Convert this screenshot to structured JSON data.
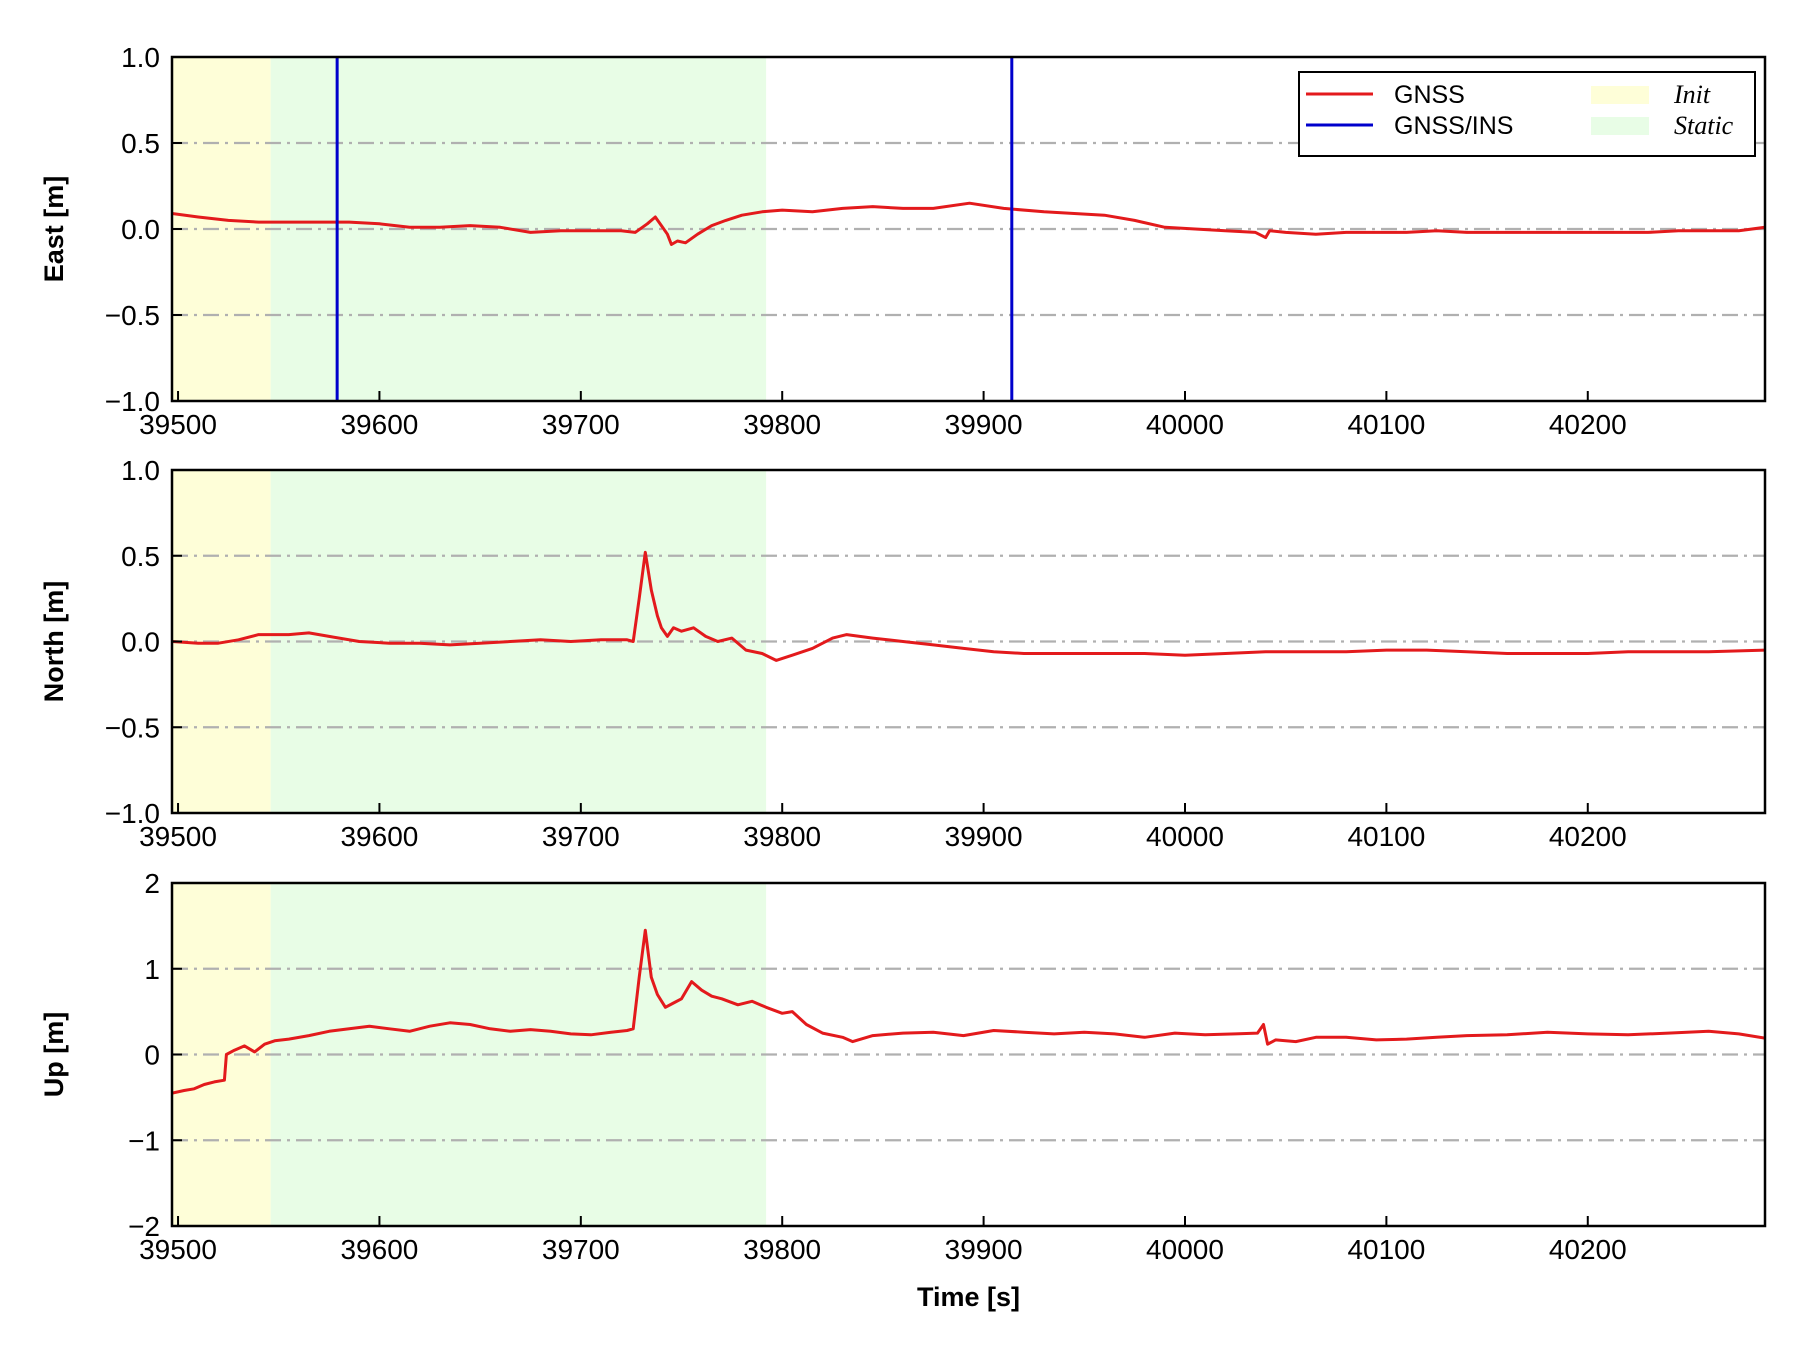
{
  "chart_data": [
    {
      "type": "line",
      "ylabel": "East [m]",
      "xlabel": "",
      "xlim": [
        39497,
        40288
      ],
      "ylim": [
        -1.0,
        1.0
      ],
      "xticks": [
        39500,
        39600,
        39700,
        39800,
        39900,
        40000,
        40100,
        40200
      ],
      "xtick_labels": [
        "39500",
        "39600",
        "39700",
        "39800",
        "39900",
        "40000",
        "40100",
        "40200"
      ],
      "yticks": [
        -1.0,
        -0.5,
        0.0,
        0.5,
        1.0
      ],
      "ytick_labels": [
        "−1.0",
        "−0.5",
        "0.0",
        "0.5",
        "1.0"
      ],
      "gridlines_y": [
        -0.5,
        0.0,
        0.5
      ],
      "shaded_regions": [
        {
          "name": "Init",
          "x0": 39497,
          "x1": 39546,
          "color": "#fefed8"
        },
        {
          "name": "Static",
          "x0": 39546,
          "x1": 39792,
          "color": "#e8fde6"
        }
      ],
      "vlines": [
        {
          "series": "GNSS/INS",
          "x": 39579,
          "color": "#0000cc"
        },
        {
          "series": "GNSS/INS",
          "x": 39914,
          "color": "#0000cc"
        }
      ],
      "series": [
        {
          "name": "GNSS",
          "color": "#e31a1c",
          "points": [
            [
              39497,
              0.09
            ],
            [
              39510,
              0.07
            ],
            [
              39525,
              0.05
            ],
            [
              39540,
              0.04
            ],
            [
              39555,
              0.04
            ],
            [
              39570,
              0.04
            ],
            [
              39585,
              0.04
            ],
            [
              39600,
              0.03
            ],
            [
              39615,
              0.01
            ],
            [
              39630,
              0.01
            ],
            [
              39645,
              0.02
            ],
            [
              39660,
              0.01
            ],
            [
              39675,
              -0.02
            ],
            [
              39690,
              -0.01
            ],
            [
              39705,
              -0.01
            ],
            [
              39720,
              -0.01
            ],
            [
              39727,
              -0.02
            ],
            [
              39733,
              0.03
            ],
            [
              39737,
              0.07
            ],
            [
              39740,
              0.02
            ],
            [
              39743,
              -0.03
            ],
            [
              39745,
              -0.09
            ],
            [
              39748,
              -0.07
            ],
            [
              39752,
              -0.08
            ],
            [
              39758,
              -0.03
            ],
            [
              39765,
              0.02
            ],
            [
              39772,
              0.05
            ],
            [
              39780,
              0.08
            ],
            [
              39790,
              0.1
            ],
            [
              39800,
              0.11
            ],
            [
              39815,
              0.1
            ],
            [
              39830,
              0.12
            ],
            [
              39845,
              0.13
            ],
            [
              39860,
              0.12
            ],
            [
              39875,
              0.12
            ],
            [
              39893,
              0.15
            ],
            [
              39910,
              0.12
            ],
            [
              39930,
              0.1
            ],
            [
              39945,
              0.09
            ],
            [
              39960,
              0.08
            ],
            [
              39975,
              0.05
            ],
            [
              39990,
              0.01
            ],
            [
              40005,
              0.0
            ],
            [
              40020,
              -0.01
            ],
            [
              40035,
              -0.02
            ],
            [
              40040,
              -0.05
            ],
            [
              40042,
              -0.01
            ],
            [
              40050,
              -0.02
            ],
            [
              40065,
              -0.03
            ],
            [
              40080,
              -0.02
            ],
            [
              40095,
              -0.02
            ],
            [
              40110,
              -0.02
            ],
            [
              40125,
              -0.01
            ],
            [
              40140,
              -0.02
            ],
            [
              40155,
              -0.02
            ],
            [
              40170,
              -0.02
            ],
            [
              40185,
              -0.02
            ],
            [
              40200,
              -0.02
            ],
            [
              40215,
              -0.02
            ],
            [
              40230,
              -0.02
            ],
            [
              40245,
              -0.01
            ],
            [
              40260,
              -0.01
            ],
            [
              40275,
              -0.01
            ],
            [
              40288,
              0.01
            ]
          ]
        }
      ],
      "legend": {
        "position": "top-right",
        "entries": [
          {
            "label": "GNSS",
            "color": "#e31a1c",
            "style": "line"
          },
          {
            "label": "GNSS/INS",
            "color": "#0000cc",
            "style": "line"
          },
          {
            "label": "Init",
            "color": "#fefed8",
            "style": "patch"
          },
          {
            "label": "Static",
            "color": "#e8fde6",
            "style": "patch"
          }
        ]
      }
    },
    {
      "type": "line",
      "ylabel": "North [m]",
      "xlabel": "",
      "xlim": [
        39497,
        40288
      ],
      "ylim": [
        -1.0,
        1.0
      ],
      "xticks": [
        39500,
        39600,
        39700,
        39800,
        39900,
        40000,
        40100,
        40200
      ],
      "xtick_labels": [
        "39500",
        "39600",
        "39700",
        "39800",
        "39900",
        "40000",
        "40100",
        "40200"
      ],
      "yticks": [
        -1.0,
        -0.5,
        0.0,
        0.5,
        1.0
      ],
      "ytick_labels": [
        "−1.0",
        "−0.5",
        "0.0",
        "0.5",
        "1.0"
      ],
      "gridlines_y": [
        -0.5,
        0.0,
        0.5
      ],
      "shaded_regions": [
        {
          "name": "Init",
          "x0": 39497,
          "x1": 39546,
          "color": "#fefed8"
        },
        {
          "name": "Static",
          "x0": 39546,
          "x1": 39792,
          "color": "#e8fde6"
        }
      ],
      "series": [
        {
          "name": "GNSS",
          "color": "#e31a1c",
          "points": [
            [
              39497,
              0.0
            ],
            [
              39510,
              -0.01
            ],
            [
              39520,
              -0.01
            ],
            [
              39530,
              0.01
            ],
            [
              39540,
              0.04
            ],
            [
              39555,
              0.04
            ],
            [
              39565,
              0.05
            ],
            [
              39575,
              0.03
            ],
            [
              39590,
              0.0
            ],
            [
              39605,
              -0.01
            ],
            [
              39620,
              -0.01
            ],
            [
              39635,
              -0.02
            ],
            [
              39650,
              -0.01
            ],
            [
              39665,
              0.0
            ],
            [
              39680,
              0.01
            ],
            [
              39695,
              0.0
            ],
            [
              39710,
              0.01
            ],
            [
              39723,
              0.01
            ],
            [
              39726,
              0.0
            ],
            [
              39729,
              0.25
            ],
            [
              39732,
              0.52
            ],
            [
              39735,
              0.3
            ],
            [
              39738,
              0.15
            ],
            [
              39740,
              0.08
            ],
            [
              39743,
              0.03
            ],
            [
              39746,
              0.08
            ],
            [
              39750,
              0.06
            ],
            [
              39756,
              0.08
            ],
            [
              39762,
              0.03
            ],
            [
              39768,
              0.0
            ],
            [
              39775,
              0.02
            ],
            [
              39782,
              -0.05
            ],
            [
              39790,
              -0.07
            ],
            [
              39797,
              -0.11
            ],
            [
              39805,
              -0.08
            ],
            [
              39815,
              -0.04
            ],
            [
              39825,
              0.02
            ],
            [
              39832,
              0.04
            ],
            [
              39845,
              0.02
            ],
            [
              39860,
              0.0
            ],
            [
              39875,
              -0.02
            ],
            [
              39890,
              -0.04
            ],
            [
              39905,
              -0.06
            ],
            [
              39920,
              -0.07
            ],
            [
              39940,
              -0.07
            ],
            [
              39960,
              -0.07
            ],
            [
              39980,
              -0.07
            ],
            [
              40000,
              -0.08
            ],
            [
              40020,
              -0.07
            ],
            [
              40040,
              -0.06
            ],
            [
              40060,
              -0.06
            ],
            [
              40080,
              -0.06
            ],
            [
              40100,
              -0.05
            ],
            [
              40120,
              -0.05
            ],
            [
              40140,
              -0.06
            ],
            [
              40160,
              -0.07
            ],
            [
              40180,
              -0.07
            ],
            [
              40200,
              -0.07
            ],
            [
              40220,
              -0.06
            ],
            [
              40240,
              -0.06
            ],
            [
              40260,
              -0.06
            ],
            [
              40288,
              -0.05
            ]
          ]
        }
      ]
    },
    {
      "type": "line",
      "ylabel": "Up [m]",
      "xlabel": "Time [s]",
      "xlim": [
        39497,
        40288
      ],
      "ylim": [
        -2,
        2
      ],
      "xticks": [
        39500,
        39600,
        39700,
        39800,
        39900,
        40000,
        40100,
        40200
      ],
      "xtick_labels": [
        "39500",
        "39600",
        "39700",
        "39800",
        "39900",
        "40000",
        "40100",
        "40200"
      ],
      "yticks": [
        -2,
        -1,
        0,
        1,
        2
      ],
      "ytick_labels": [
        "−2",
        "−1",
        "0",
        "1",
        "2"
      ],
      "gridlines_y": [
        -1,
        0,
        1
      ],
      "shaded_regions": [
        {
          "name": "Init",
          "x0": 39497,
          "x1": 39546,
          "color": "#fefed8"
        },
        {
          "name": "Static",
          "x0": 39546,
          "x1": 39792,
          "color": "#e8fde6"
        }
      ],
      "series": [
        {
          "name": "GNSS",
          "color": "#e31a1c",
          "points": [
            [
              39497,
              -0.45
            ],
            [
              39503,
              -0.42
            ],
            [
              39508,
              -0.4
            ],
            [
              39513,
              -0.35
            ],
            [
              39518,
              -0.32
            ],
            [
              39523,
              -0.3
            ],
            [
              39524,
              0.0
            ],
            [
              39528,
              0.05
            ],
            [
              39533,
              0.1
            ],
            [
              39538,
              0.03
            ],
            [
              39543,
              0.12
            ],
            [
              39548,
              0.16
            ],
            [
              39555,
              0.18
            ],
            [
              39565,
              0.22
            ],
            [
              39575,
              0.27
            ],
            [
              39585,
              0.3
            ],
            [
              39595,
              0.33
            ],
            [
              39605,
              0.3
            ],
            [
              39615,
              0.27
            ],
            [
              39625,
              0.33
            ],
            [
              39635,
              0.37
            ],
            [
              39645,
              0.35
            ],
            [
              39655,
              0.3
            ],
            [
              39665,
              0.27
            ],
            [
              39675,
              0.29
            ],
            [
              39685,
              0.27
            ],
            [
              39695,
              0.24
            ],
            [
              39705,
              0.23
            ],
            [
              39715,
              0.26
            ],
            [
              39723,
              0.28
            ],
            [
              39726,
              0.3
            ],
            [
              39729,
              0.9
            ],
            [
              39732,
              1.45
            ],
            [
              39735,
              0.9
            ],
            [
              39738,
              0.7
            ],
            [
              39742,
              0.55
            ],
            [
              39746,
              0.6
            ],
            [
              39750,
              0.65
            ],
            [
              39755,
              0.85
            ],
            [
              39760,
              0.75
            ],
            [
              39765,
              0.68
            ],
            [
              39770,
              0.65
            ],
            [
              39778,
              0.58
            ],
            [
              39785,
              0.62
            ],
            [
              39792,
              0.55
            ],
            [
              39800,
              0.48
            ],
            [
              39805,
              0.5
            ],
            [
              39812,
              0.35
            ],
            [
              39820,
              0.25
            ],
            [
              39830,
              0.2
            ],
            [
              39835,
              0.15
            ],
            [
              39845,
              0.22
            ],
            [
              39860,
              0.25
            ],
            [
              39875,
              0.26
            ],
            [
              39890,
              0.22
            ],
            [
              39905,
              0.28
            ],
            [
              39920,
              0.26
            ],
            [
              39935,
              0.24
            ],
            [
              39950,
              0.26
            ],
            [
              39965,
              0.24
            ],
            [
              39980,
              0.2
            ],
            [
              39995,
              0.25
            ],
            [
              40010,
              0.23
            ],
            [
              40025,
              0.24
            ],
            [
              40036,
              0.25
            ],
            [
              40039,
              0.35
            ],
            [
              40041,
              0.12
            ],
            [
              40045,
              0.17
            ],
            [
              40055,
              0.15
            ],
            [
              40065,
              0.2
            ],
            [
              40080,
              0.2
            ],
            [
              40095,
              0.17
            ],
            [
              40110,
              0.18
            ],
            [
              40125,
              0.2
            ],
            [
              40140,
              0.22
            ],
            [
              40160,
              0.23
            ],
            [
              40180,
              0.26
            ],
            [
              40200,
              0.24
            ],
            [
              40220,
              0.23
            ],
            [
              40240,
              0.25
            ],
            [
              40260,
              0.27
            ],
            [
              40275,
              0.24
            ],
            [
              40288,
              0.19
            ]
          ]
        }
      ]
    }
  ]
}
